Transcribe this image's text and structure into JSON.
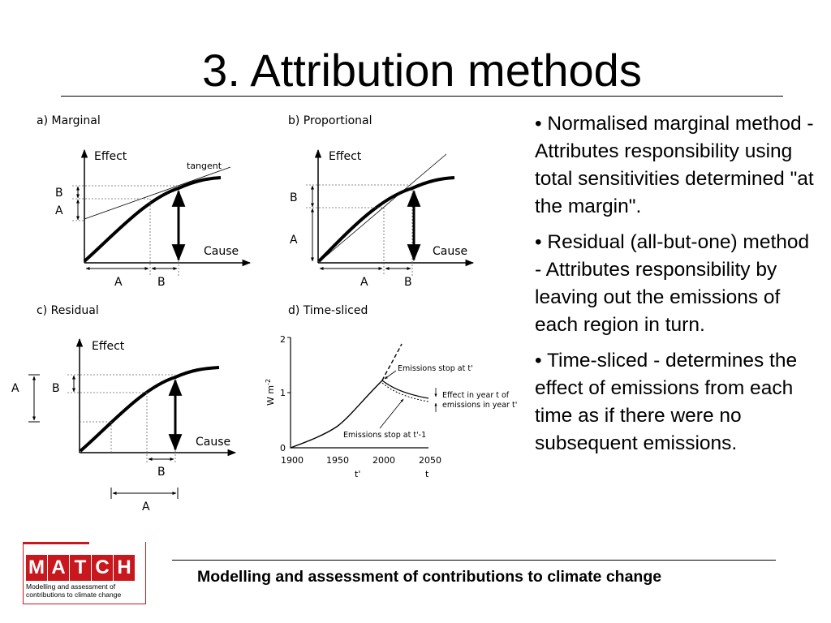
{
  "slide": {
    "title": "3. Attribution methods",
    "footer": "Modelling and assessment of contributions to climate change"
  },
  "bullets": [
    "• Normalised marginal method - Attributes responsibility using total sensitivities determined \"at the margin\".",
    "• Residual (all-but-one) method - Attributes responsibility by leaving out the emissions of each region in turn.",
    "• Time-sliced - determines the effect of emissions from each time as if there were no subsequent emissions."
  ],
  "logo": {
    "letters": [
      "M",
      "A",
      "T",
      "C",
      "H"
    ],
    "text": "Modelling and assessment of contributions to climate change",
    "color": "#c8181e"
  },
  "figure": {
    "panel_a": {
      "title": "a) Marginal",
      "y_axis": "Effect",
      "x_axis": "Cause",
      "tangent_label": "tangent",
      "left_labels": [
        "B",
        "A"
      ],
      "bottom_labels": [
        "A",
        "B"
      ]
    },
    "panel_b": {
      "title": "b) Proportional",
      "y_axis": "Effect",
      "x_axis": "Cause",
      "left_labels": [
        "B",
        "A"
      ],
      "bottom_labels": [
        "A",
        "B"
      ]
    },
    "panel_c": {
      "title": "c) Residual",
      "y_axis": "Effect",
      "x_axis": "Cause",
      "left_labels": [
        "A",
        "B"
      ],
      "bottom_labels": [
        "B",
        "A"
      ]
    },
    "panel_d": {
      "title": "d) Time-sliced",
      "y_axis": "W m",
      "y_axis_superscript": "-2",
      "y_ticks": [
        "2",
        "1",
        "0"
      ],
      "x_ticks": [
        "1900",
        "1950",
        "2000",
        "2050"
      ],
      "x_markers": [
        "t'",
        "t"
      ],
      "annotation_stop_t": "Emissions stop at t'",
      "annotation_effect_line1": "Effect in year t of",
      "annotation_effect_line2": "emissions in year t'",
      "annotation_stop_t1": "Emissions stop at t'-1"
    }
  }
}
